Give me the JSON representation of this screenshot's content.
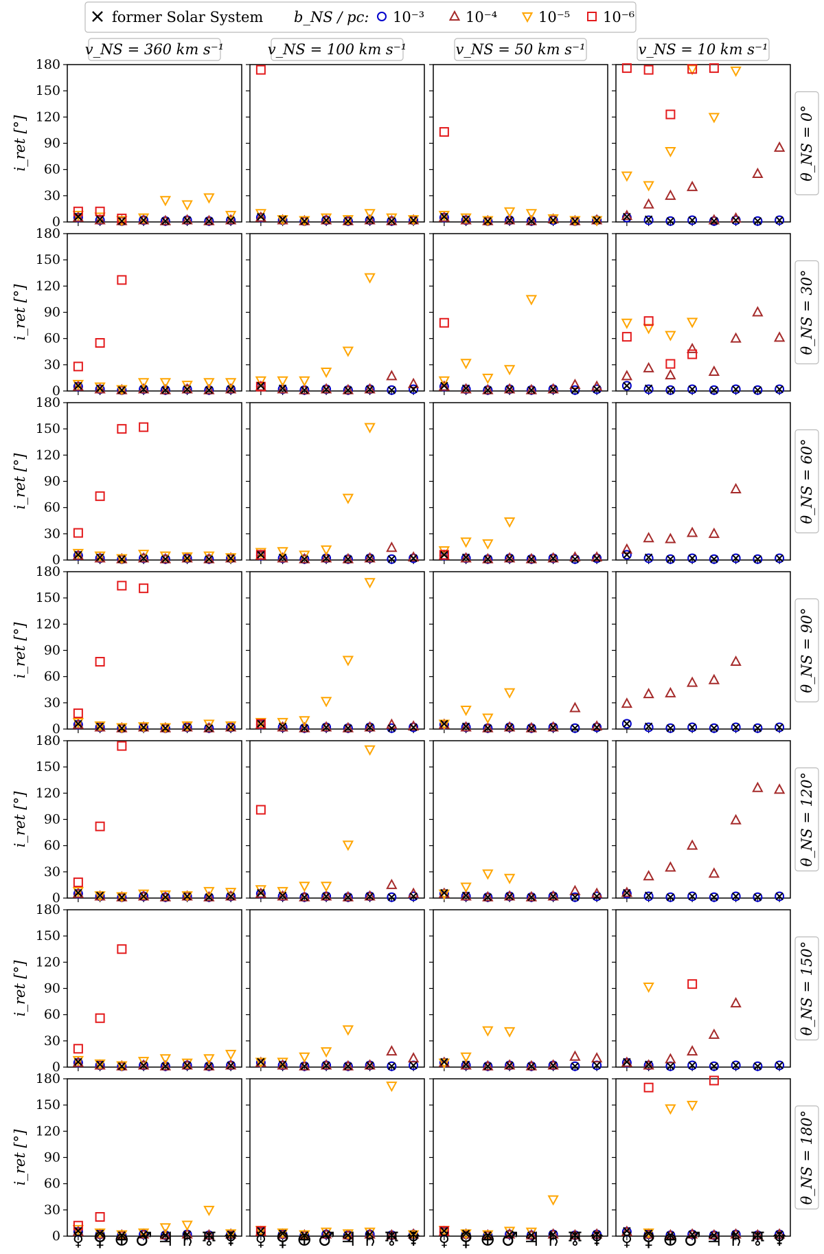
{
  "chart_data": {
    "type": "scatter",
    "ylabel": "i_ret [°]",
    "ylim": [
      0,
      180
    ],
    "yticks": [
      "0",
      "30",
      "60",
      "90",
      "120",
      "150",
      "180"
    ],
    "planets": [
      "☿",
      "♀",
      "⊕",
      "♂",
      "♃",
      "♄",
      "♅",
      "♆"
    ],
    "columns": [
      "v_NS = 360 km s⁻¹",
      "v_NS = 100 km s⁻¹",
      "v_NS = 50 km s⁻¹",
      "v_NS = 10 km s⁻¹"
    ],
    "rows": [
      "θ_NS = 0°",
      "θ_NS = 30°",
      "θ_NS = 60°",
      "θ_NS = 90°",
      "θ_NS = 120°",
      "θ_NS = 150°",
      "θ_NS = 180°"
    ],
    "legend": {
      "former": "former Solar System",
      "title": "b_NS / pc:",
      "series": [
        {
          "key": "b3",
          "label": "10⁻³",
          "marker": "circle",
          "color": "#0000cc"
        },
        {
          "key": "b4",
          "label": "10⁻⁴",
          "marker": "triangle-up",
          "color": "#a52a2a"
        },
        {
          "key": "b5",
          "label": "10⁻⁵",
          "marker": "triangle-down",
          "color": "#ffa500"
        },
        {
          "key": "b6",
          "label": "10⁻⁶",
          "marker": "square",
          "color": "#e31a1c"
        }
      ]
    },
    "former": [
      6,
      3,
      1,
      2,
      1,
      2,
      1,
      2
    ],
    "panels": [
      [
        {
          "b3": [
            5,
            2,
            1,
            2,
            1,
            2,
            1,
            2
          ],
          "b4": [
            5,
            2,
            1,
            2,
            1,
            2,
            1,
            2
          ],
          "b5": [
            8,
            6,
            2,
            5,
            25,
            20,
            28,
            8
          ],
          "b6": [
            12,
            12,
            4,
            null,
            null,
            null,
            null,
            null
          ]
        },
        {
          "b3": [
            5,
            2,
            1,
            2,
            1,
            2,
            1,
            2
          ],
          "b4": [
            5,
            2,
            1,
            2,
            1,
            2,
            1,
            2
          ],
          "b5": [
            10,
            3,
            2,
            5,
            3,
            10,
            5,
            3
          ],
          "b6": [
            174,
            null,
            null,
            null,
            null,
            null,
            null,
            null
          ]
        },
        {
          "b3": [
            5,
            2,
            1,
            2,
            1,
            2,
            1,
            2
          ],
          "b4": [
            5,
            2,
            1,
            2,
            1,
            3,
            1,
            2
          ],
          "b5": [
            8,
            5,
            2,
            12,
            10,
            4,
            2,
            2
          ],
          "b6": [
            103,
            null,
            null,
            null,
            null,
            null,
            null,
            null
          ]
        },
        {
          "b3": [
            5,
            2,
            1,
            2,
            1,
            2,
            1,
            2
          ],
          "b4": [
            7,
            20,
            30,
            40,
            2,
            4,
            55,
            85
          ],
          "b5": [
            53,
            42,
            81,
            175,
            120,
            173,
            null,
            null
          ],
          "b6": [
            176,
            174,
            123,
            175,
            176,
            null,
            null,
            null
          ]
        }
      ],
      [
        {
          "b3": [
            5,
            2,
            1,
            2,
            1,
            2,
            1,
            2
          ],
          "b4": [
            5,
            2,
            1,
            2,
            1,
            2,
            1,
            2
          ],
          "b5": [
            8,
            5,
            2,
            10,
            10,
            7,
            10,
            10
          ],
          "b6": [
            28,
            55,
            127,
            null,
            null,
            null,
            null,
            null
          ]
        },
        {
          "b3": [
            5,
            2,
            1,
            2,
            1,
            2,
            1,
            2
          ],
          "b4": [
            5,
            2,
            1,
            2,
            1,
            2,
            17,
            8
          ],
          "b5": [
            12,
            12,
            12,
            22,
            46,
            130,
            null,
            null
          ],
          "b6": [
            5,
            null,
            null,
            null,
            null,
            null,
            null,
            null
          ]
        },
        {
          "b3": [
            5,
            2,
            1,
            2,
            1,
            2,
            1,
            2
          ],
          "b4": [
            5,
            2,
            1,
            2,
            1,
            2,
            7,
            5
          ],
          "b5": [
            12,
            32,
            15,
            25,
            105,
            null,
            null,
            null
          ],
          "b6": [
            78,
            null,
            null,
            null,
            null,
            null,
            null,
            null
          ]
        },
        {
          "b3": [
            6,
            2,
            1,
            2,
            1,
            2,
            1,
            2
          ],
          "b4": [
            17,
            26,
            18,
            48,
            22,
            60,
            90,
            61
          ],
          "b5": [
            78,
            72,
            64,
            79,
            null,
            null,
            null,
            null
          ],
          "b6": [
            62,
            80,
            31,
            42,
            null,
            null,
            null,
            null
          ]
        }
      ],
      [
        {
          "b3": [
            5,
            2,
            1,
            2,
            1,
            2,
            1,
            2
          ],
          "b4": [
            5,
            2,
            1,
            2,
            1,
            2,
            1,
            2
          ],
          "b5": [
            8,
            5,
            2,
            7,
            5,
            4,
            5,
            3
          ],
          "b6": [
            31,
            73,
            150,
            152,
            null,
            null,
            null,
            null
          ]
        },
        {
          "b3": [
            5,
            2,
            1,
            2,
            1,
            2,
            1,
            2
          ],
          "b4": [
            5,
            2,
            1,
            2,
            1,
            2,
            14,
            3
          ],
          "b5": [
            9,
            10,
            6,
            12,
            71,
            152,
            null,
            null
          ],
          "b6": [
            6,
            null,
            null,
            null,
            null,
            null,
            null,
            null
          ]
        },
        {
          "b3": [
            5,
            2,
            1,
            2,
            1,
            2,
            1,
            2
          ],
          "b4": [
            5,
            2,
            1,
            2,
            1,
            2,
            3,
            3
          ],
          "b5": [
            11,
            21,
            19,
            44,
            null,
            null,
            null,
            null
          ],
          "b6": [
            6,
            null,
            null,
            null,
            null,
            null,
            null,
            null
          ]
        },
        {
          "b3": [
            6,
            2,
            1,
            2,
            1,
            2,
            1,
            2
          ],
          "b4": [
            12,
            25,
            24,
            31,
            30,
            81,
            null,
            null
          ],
          "b5": [
            null,
            null,
            null,
            null,
            null,
            null,
            null,
            null
          ],
          "b6": [
            null,
            null,
            null,
            null,
            null,
            null,
            null,
            null
          ]
        }
      ],
      [
        {
          "b3": [
            5,
            2,
            1,
            2,
            1,
            2,
            1,
            2
          ],
          "b4": [
            5,
            2,
            1,
            2,
            1,
            2,
            1,
            2
          ],
          "b5": [
            8,
            4,
            2,
            3,
            2,
            4,
            6,
            4
          ],
          "b6": [
            18,
            77,
            164,
            161,
            null,
            null,
            null,
            null
          ]
        },
        {
          "b3": [
            5,
            2,
            1,
            2,
            1,
            2,
            1,
            2
          ],
          "b4": [
            5,
            2,
            1,
            2,
            1,
            2,
            5,
            3
          ],
          "b5": [
            8,
            8,
            10,
            32,
            79,
            168,
            null,
            null
          ],
          "b6": [
            6,
            null,
            null,
            null,
            null,
            null,
            null,
            null
          ]
        },
        {
          "b3": [
            5,
            2,
            1,
            2,
            1,
            2,
            1,
            2
          ],
          "b4": [
            5,
            2,
            1,
            2,
            1,
            2,
            24,
            3
          ],
          "b5": [
            6,
            22,
            13,
            42,
            null,
            null,
            null,
            null
          ],
          "b6": [
            null,
            null,
            null,
            null,
            null,
            null,
            null,
            null
          ]
        },
        {
          "b3": [
            6,
            2,
            1,
            2,
            1,
            2,
            1,
            2
          ],
          "b4": [
            29,
            40,
            41,
            53,
            56,
            77,
            null,
            null
          ],
          "b5": [
            null,
            null,
            null,
            null,
            null,
            null,
            null,
            null
          ],
          "b6": [
            null,
            null,
            null,
            null,
            null,
            null,
            null,
            null
          ]
        }
      ],
      [
        {
          "b3": [
            5,
            2,
            1,
            2,
            1,
            2,
            1,
            2
          ],
          "b4": [
            5,
            2,
            1,
            2,
            1,
            2,
            1,
            2
          ],
          "b5": [
            8,
            3,
            2,
            5,
            4,
            3,
            8,
            7
          ],
          "b6": [
            18,
            82,
            174,
            null,
            null,
            null,
            null,
            null
          ]
        },
        {
          "b3": [
            5,
            2,
            1,
            2,
            1,
            2,
            1,
            2
          ],
          "b4": [
            5,
            2,
            1,
            2,
            1,
            2,
            15,
            5
          ],
          "b5": [
            10,
            8,
            14,
            14,
            61,
            170,
            null,
            null
          ],
          "b6": [
            101,
            null,
            null,
            null,
            null,
            null,
            null,
            null
          ]
        },
        {
          "b3": [
            5,
            2,
            1,
            2,
            1,
            2,
            1,
            2
          ],
          "b4": [
            5,
            2,
            1,
            2,
            1,
            2,
            8,
            5
          ],
          "b5": [
            5,
            13,
            28,
            23,
            null,
            null,
            null,
            null
          ],
          "b6": [
            null,
            null,
            null,
            null,
            null,
            null,
            null,
            null
          ]
        },
        {
          "b3": [
            5,
            2,
            1,
            2,
            1,
            2,
            1,
            2
          ],
          "b4": [
            6,
            25,
            35,
            60,
            28,
            89,
            126,
            124
          ],
          "b5": [
            null,
            null,
            null,
            null,
            null,
            null,
            null,
            null
          ],
          "b6": [
            null,
            null,
            null,
            null,
            null,
            null,
            null,
            null
          ]
        }
      ],
      [
        {
          "b3": [
            5,
            2,
            1,
            2,
            1,
            2,
            1,
            2
          ],
          "b4": [
            5,
            2,
            1,
            2,
            1,
            2,
            1,
            2
          ],
          "b5": [
            8,
            4,
            2,
            7,
            10,
            5,
            10,
            15
          ],
          "b6": [
            21,
            56,
            135,
            null,
            null,
            null,
            null,
            null
          ]
        },
        {
          "b3": [
            5,
            2,
            1,
            2,
            1,
            2,
            1,
            2
          ],
          "b4": [
            5,
            2,
            1,
            2,
            1,
            2,
            18,
            10
          ],
          "b5": [
            6,
            6,
            12,
            18,
            43,
            null,
            null,
            null
          ],
          "b6": [
            null,
            null,
            null,
            null,
            null,
            null,
            null,
            null
          ]
        },
        {
          "b3": [
            5,
            2,
            1,
            2,
            1,
            2,
            1,
            2
          ],
          "b4": [
            5,
            2,
            1,
            2,
            1,
            2,
            12,
            10
          ],
          "b5": [
            5,
            12,
            42,
            41,
            null,
            null,
            null,
            null
          ],
          "b6": [
            null,
            null,
            null,
            null,
            null,
            null,
            null,
            null
          ]
        },
        {
          "b3": [
            5,
            2,
            1,
            2,
            1,
            2,
            1,
            2
          ],
          "b4": [
            5,
            2,
            9,
            18,
            37,
            73,
            null,
            null
          ],
          "b5": [
            null,
            92,
            null,
            null,
            null,
            null,
            null,
            null
          ],
          "b6": [
            null,
            null,
            null,
            95,
            null,
            null,
            null,
            null
          ]
        }
      ],
      [
        {
          "b3": [
            5,
            2,
            1,
            2,
            1,
            2,
            1,
            2
          ],
          "b4": [
            5,
            2,
            1,
            2,
            1,
            2,
            1,
            2
          ],
          "b5": [
            8,
            4,
            2,
            4,
            10,
            13,
            30,
            3
          ],
          "b6": [
            12,
            22,
            null,
            null,
            null,
            null,
            null,
            null
          ]
        },
        {
          "b3": [
            5,
            2,
            1,
            2,
            1,
            2,
            1,
            2
          ],
          "b4": [
            5,
            2,
            1,
            2,
            1,
            2,
            1,
            2
          ],
          "b5": [
            7,
            4,
            2,
            5,
            3,
            5,
            172,
            2
          ],
          "b6": [
            6,
            null,
            null,
            null,
            null,
            null,
            null,
            null
          ]
        },
        {
          "b3": [
            5,
            2,
            1,
            2,
            1,
            2,
            1,
            2
          ],
          "b4": [
            5,
            2,
            1,
            2,
            1,
            2,
            1,
            2
          ],
          "b5": [
            7,
            3,
            2,
            6,
            5,
            42,
            null,
            null
          ],
          "b6": [
            6,
            null,
            null,
            null,
            null,
            null,
            null,
            null
          ]
        },
        {
          "b3": [
            5,
            2,
            1,
            2,
            1,
            2,
            1,
            2
          ],
          "b4": [
            5,
            2,
            1,
            2,
            1,
            2,
            1,
            2
          ],
          "b5": [
            null,
            4,
            146,
            150,
            null,
            null,
            null,
            null
          ],
          "b6": [
            null,
            170,
            null,
            null,
            178,
            null,
            null,
            null
          ]
        }
      ]
    ]
  }
}
